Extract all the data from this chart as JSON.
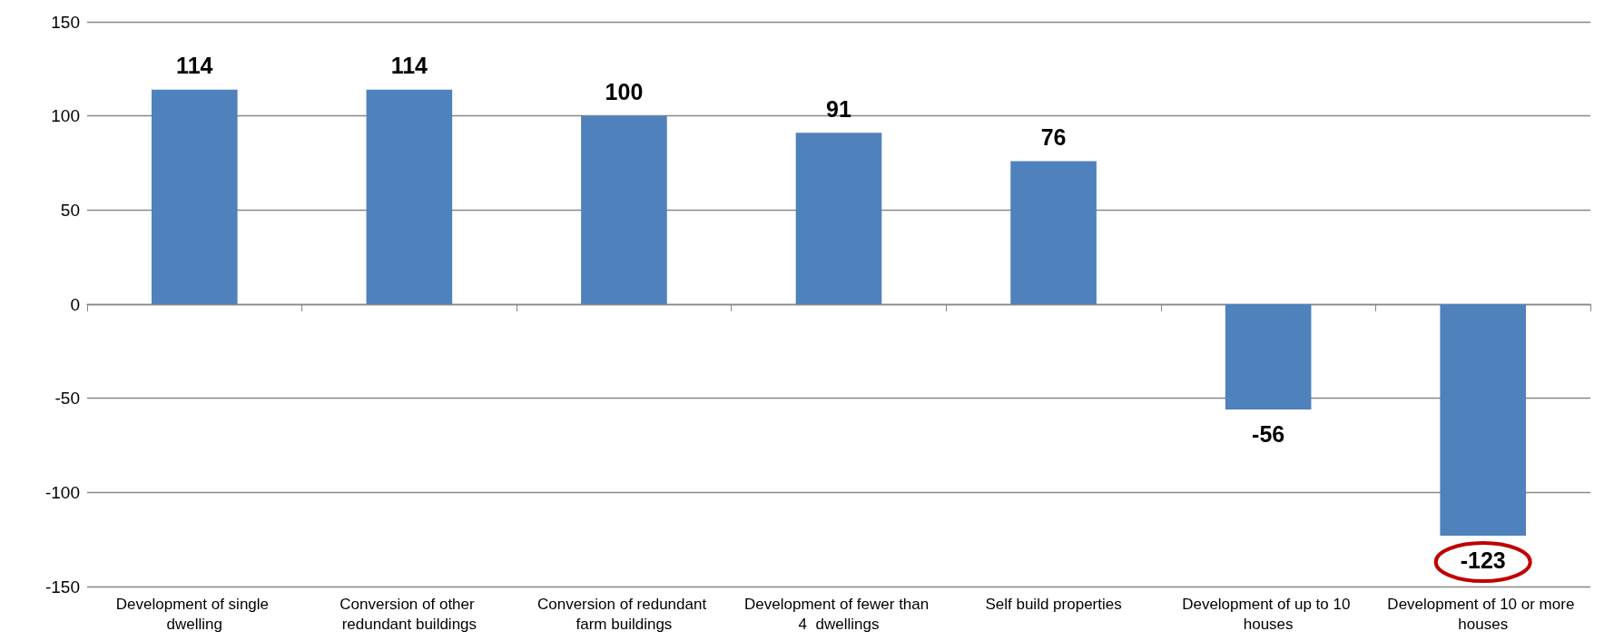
{
  "chart_data": {
    "type": "bar",
    "categories": [
      "Development of single dwelling",
      "Conversion of other redundant buildings",
      "Conversion of redundant farm buildings",
      "Development of fewer than 4  dwellings",
      "Self build properties",
      "Development of up to 10 houses",
      "Development of 10 or more houses"
    ],
    "values": [
      114,
      114,
      100,
      91,
      76,
      -56,
      -123
    ],
    "color": "#4f81bd",
    "ylim": [
      -150,
      150
    ],
    "yticks": [
      -150,
      -100,
      -50,
      0,
      50,
      100,
      150
    ],
    "grid": "y",
    "data_labels": true
  }
}
